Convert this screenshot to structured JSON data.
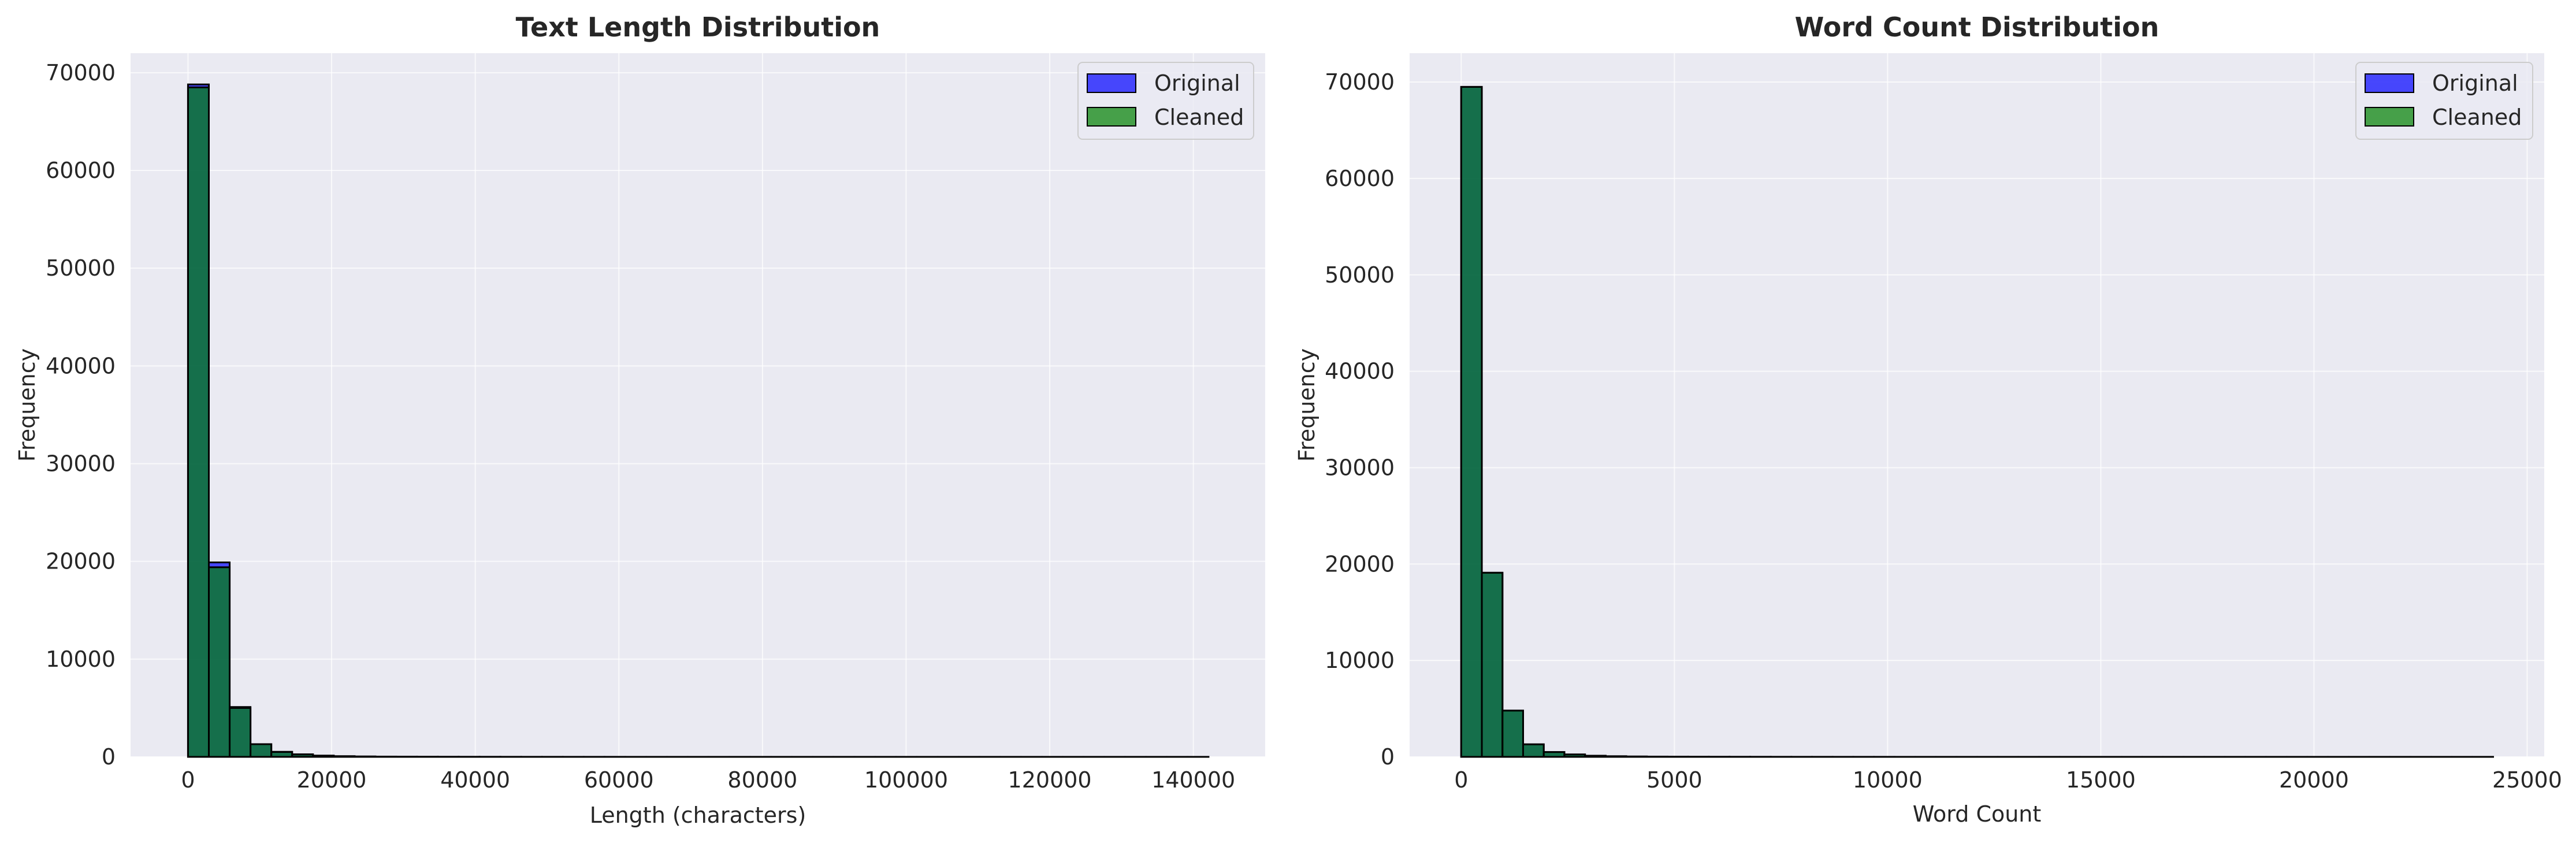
{
  "chart_data": [
    {
      "type": "histogram",
      "title": "Text Length Distribution",
      "xlabel": "Length (characters)",
      "ylabel": "Frequency",
      "xlim": [
        -8000,
        150000
      ],
      "ylim": [
        0,
        72000
      ],
      "xticks": [
        "0",
        "20000",
        "40000",
        "60000",
        "80000",
        "100000",
        "120000",
        "140000"
      ],
      "yticks": [
        "0",
        "10000",
        "20000",
        "30000",
        "40000",
        "50000",
        "60000",
        "70000"
      ],
      "grid": true,
      "legend_position": "top-right",
      "bin_start": 0,
      "bin_width": 2900,
      "series": [
        {
          "name": "Original",
          "color": "#0000ff",
          "values": [
            68800,
            19900,
            5100,
            1300,
            520,
            260,
            130,
            70,
            40,
            25,
            15,
            10,
            8,
            6,
            5,
            4,
            3,
            3,
            2,
            2,
            2,
            1,
            1,
            1,
            1,
            1,
            1,
            1,
            1,
            1,
            1,
            1,
            1,
            1,
            1,
            1,
            1,
            1,
            1,
            1,
            1,
            1,
            1,
            1,
            1,
            1,
            1,
            1,
            1
          ]
        },
        {
          "name": "Cleaned",
          "color": "#008000",
          "values": [
            68500,
            19400,
            5000,
            1300,
            500,
            250,
            120,
            65,
            38,
            24,
            14,
            10,
            8,
            6,
            5,
            4,
            3,
            3,
            2,
            2,
            2,
            1,
            1,
            1,
            1,
            1,
            1,
            1,
            1,
            1,
            1,
            1,
            1,
            1,
            1,
            1,
            1,
            1,
            1,
            1,
            1,
            1,
            1,
            1,
            1,
            1,
            1,
            1,
            1
          ]
        }
      ]
    },
    {
      "type": "histogram",
      "title": "Word Count Distribution",
      "xlabel": "Word Count",
      "ylabel": "Frequency",
      "xlim": [
        -1210,
        25400
      ],
      "ylim": [
        0,
        73000
      ],
      "xticks": [
        "0",
        "5000",
        "10000",
        "15000",
        "20000",
        "25000"
      ],
      "yticks": [
        "0",
        "10000",
        "20000",
        "30000",
        "40000",
        "50000",
        "60000",
        "70000"
      ],
      "grid": true,
      "legend_position": "top-right",
      "bin_start": 0,
      "bin_width": 484,
      "series": [
        {
          "name": "Original",
          "color": "#0000ff",
          "values": [
            69500,
            19100,
            4800,
            1300,
            500,
            250,
            120,
            65,
            38,
            24,
            14,
            10,
            8,
            6,
            5,
            4,
            3,
            3,
            2,
            2,
            2,
            1,
            1,
            1,
            1,
            1,
            1,
            1,
            1,
            1,
            1,
            1,
            1,
            1,
            1,
            1,
            1,
            1,
            1,
            1,
            1,
            1,
            1,
            1,
            1,
            1,
            1,
            1,
            1,
            1
          ]
        },
        {
          "name": "Cleaned",
          "color": "#008000",
          "values": [
            69500,
            19100,
            4800,
            1300,
            500,
            250,
            120,
            65,
            38,
            24,
            14,
            10,
            8,
            6,
            5,
            4,
            3,
            3,
            2,
            2,
            2,
            1,
            1,
            1,
            1,
            1,
            1,
            1,
            1,
            1,
            1,
            1,
            1,
            1,
            1,
            1,
            1,
            1,
            1,
            1,
            1,
            1,
            1,
            1,
            1,
            1,
            1,
            1,
            1,
            1
          ]
        }
      ]
    }
  ]
}
